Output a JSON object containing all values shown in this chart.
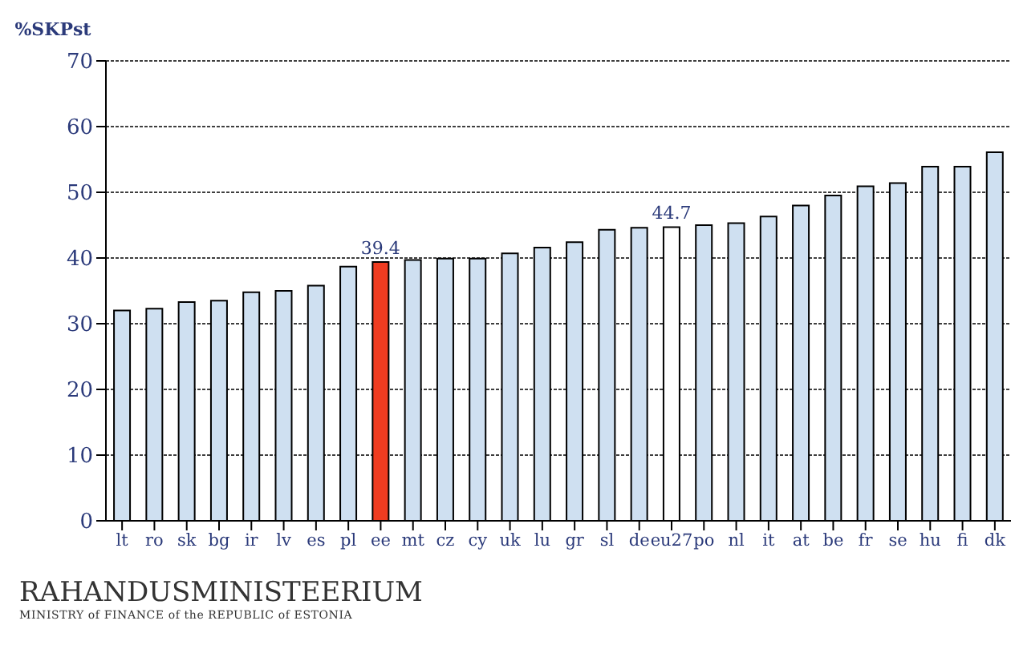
{
  "chart_data": {
    "type": "bar",
    "ylabel": "%SKPst",
    "categories": [
      "lt",
      "ro",
      "sk",
      "bg",
      "ir",
      "lv",
      "es",
      "pl",
      "ee",
      "mt",
      "cz",
      "cy",
      "uk",
      "lu",
      "gr",
      "sl",
      "de",
      "eu27",
      "po",
      "nl",
      "it",
      "at",
      "be",
      "fr",
      "se",
      "hu",
      "fi",
      "dk"
    ],
    "values": [
      32.0,
      32.3,
      33.3,
      33.5,
      34.8,
      35.0,
      35.8,
      38.7,
      39.4,
      39.7,
      39.9,
      39.9,
      40.7,
      41.6,
      42.4,
      44.3,
      44.6,
      44.7,
      45.0,
      45.3,
      46.3,
      48.0,
      49.5,
      50.9,
      51.4,
      53.9,
      53.9,
      56.1
    ],
    "colors": [
      "#cfe0f1",
      "#cfe0f1",
      "#cfe0f1",
      "#cfe0f1",
      "#cfe0f1",
      "#cfe0f1",
      "#cfe0f1",
      "#cfe0f1",
      "#f03c20",
      "#cfe0f1",
      "#cfe0f1",
      "#cfe0f1",
      "#cfe0f1",
      "#cfe0f1",
      "#cfe0f1",
      "#cfe0f1",
      "#cfe0f1",
      "#ffffff",
      "#cfe0f1",
      "#cfe0f1",
      "#cfe0f1",
      "#cfe0f1",
      "#cfe0f1",
      "#cfe0f1",
      "#cfe0f1",
      "#cfe0f1",
      "#cfe0f1",
      "#cfe0f1"
    ],
    "value_labels": [
      null,
      null,
      null,
      null,
      null,
      null,
      null,
      null,
      "39.4",
      null,
      null,
      null,
      null,
      null,
      null,
      null,
      null,
      "44.7",
      null,
      null,
      null,
      null,
      null,
      null,
      null,
      null,
      null,
      null
    ],
    "ylim": [
      0,
      70
    ],
    "yticks": [
      0,
      10,
      20,
      30,
      40,
      50,
      60,
      70
    ],
    "grid": "y",
    "annotations": [
      "RAHANDUSMINISTEERIUM",
      "MINISTRY of FINANCE of the REPUBLIC of ESTONIA"
    ]
  }
}
